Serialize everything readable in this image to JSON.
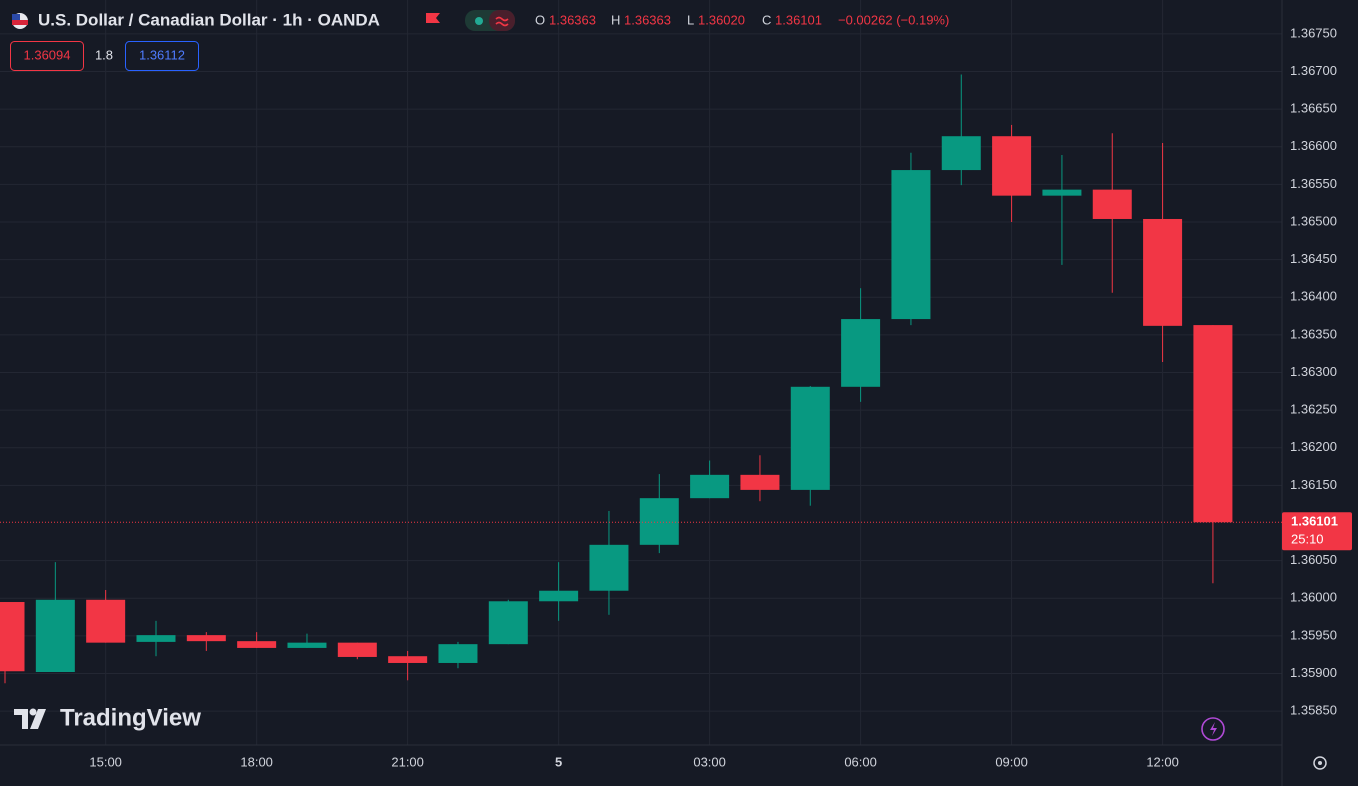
{
  "chart_data": {
    "type": "candlestick",
    "title": "U.S. Dollar / Canadian Dollar · 1h · OANDA",
    "header": {
      "open_letter": "O",
      "open": "1.36363",
      "high_letter": "H",
      "high": "1.36363",
      "low_letter": "L",
      "low": "1.36020",
      "close_letter": "C",
      "close": "1.36101",
      "change": "−0.00262 (−0.19%)"
    },
    "quote": {
      "sell": "1.36094",
      "spread": "1.8",
      "buy": "1.36112"
    },
    "watermark": "TradingView",
    "last_price": 1.36101,
    "countdown": "25:10",
    "categories": [
      null,
      null,
      "15:00",
      null,
      null,
      "18:00",
      null,
      null,
      "21:00",
      null,
      null,
      "5",
      null,
      null,
      "03:00",
      null,
      null,
      "06:00",
      null,
      null,
      "09:00",
      null,
      null,
      "12:00",
      null
    ],
    "open": [
      1.35995,
      1.35902,
      1.35998,
      1.35942,
      1.35951,
      1.35943,
      1.35934,
      1.35941,
      1.35923,
      1.35914,
      1.35939,
      1.35996,
      1.3601,
      1.36071,
      1.36133,
      1.36164,
      1.36144,
      1.36281,
      1.36371,
      1.36569,
      1.36614,
      1.36535,
      1.36543,
      1.36504,
      1.36363
    ],
    "high": [
      1.35995,
      1.36048,
      1.36011,
      1.3597,
      1.35955,
      1.35955,
      1.35953,
      1.35941,
      1.3593,
      1.35942,
      1.35998,
      1.36048,
      1.36116,
      1.36165,
      1.36183,
      1.3619,
      1.36282,
      1.36412,
      1.36592,
      1.36696,
      1.36629,
      1.36589,
      1.36618,
      1.36605,
      1.36363
    ],
    "low": [
      1.35887,
      1.35902,
      1.35941,
      1.35923,
      1.3593,
      1.35934,
      1.35934,
      1.35919,
      1.35891,
      1.35907,
      1.35939,
      1.3597,
      1.35978,
      1.3606,
      1.36133,
      1.36129,
      1.36123,
      1.36261,
      1.36363,
      1.36549,
      1.365,
      1.36443,
      1.36406,
      1.36314,
      1.3602
    ],
    "close": [
      1.35903,
      1.35998,
      1.35941,
      1.35951,
      1.35943,
      1.35934,
      1.35941,
      1.35922,
      1.35914,
      1.35939,
      1.35996,
      1.3601,
      1.36071,
      1.36133,
      1.36164,
      1.36144,
      1.36281,
      1.36371,
      1.36569,
      1.36614,
      1.36535,
      1.36543,
      1.36504,
      1.36362,
      1.36101
    ],
    "up_color": "#089981",
    "down_color": "#f23645",
    "ylim": [
      1.35805,
      1.36795
    ],
    "yticks": [
      {
        "value": 1.3585,
        "label": "1.35850"
      },
      {
        "value": 1.359,
        "label": "1.35900"
      },
      {
        "value": 1.3595,
        "label": "1.35950"
      },
      {
        "value": 1.36,
        "label": "1.36000"
      },
      {
        "value": 1.3605,
        "label": "1.36050"
      },
      {
        "value": 1.3615,
        "label": "1.36150"
      },
      {
        "value": 1.362,
        "label": "1.36200"
      },
      {
        "value": 1.3625,
        "label": "1.36250"
      },
      {
        "value": 1.363,
        "label": "1.36300"
      },
      {
        "value": 1.3635,
        "label": "1.36350"
      },
      {
        "value": 1.364,
        "label": "1.36400"
      },
      {
        "value": 1.3645,
        "label": "1.36450"
      },
      {
        "value": 1.365,
        "label": "1.36500"
      },
      {
        "value": 1.3655,
        "label": "1.36550"
      },
      {
        "value": 1.366,
        "label": "1.36600"
      },
      {
        "value": 1.3665,
        "label": "1.36650"
      },
      {
        "value": 1.367,
        "label": "1.36700"
      },
      {
        "value": 1.3675,
        "label": "1.36750"
      }
    ],
    "grid": true
  }
}
